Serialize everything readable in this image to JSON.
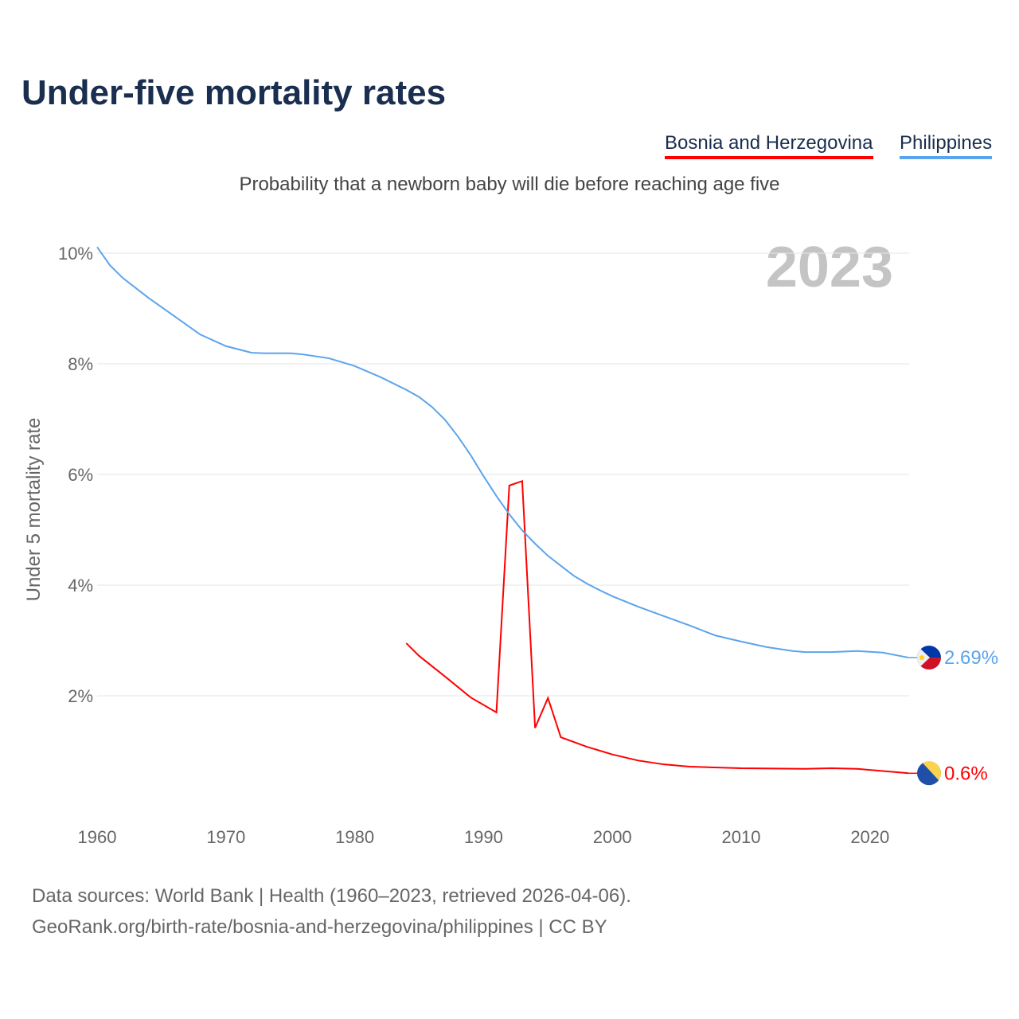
{
  "title": "Under-five mortality rates",
  "subtitle": "Probability that a newborn baby will die before reaching age five",
  "sources": [
    "Data sources: World Bank | Health (1960–2023, retrieved 2026-04-06).",
    "GeoRank.org/birth-rate/bosnia-and-herzegovina/philippines | CC BY"
  ],
  "chart_data": {
    "type": "line",
    "title": "Under-five mortality rates",
    "ylabel": "Under 5 mortality rate",
    "xlabel": "",
    "year_label": "2023",
    "xlim": [
      1960,
      2023
    ],
    "ylim": [
      0,
      10
    ],
    "xticks": [
      "1960",
      "1970",
      "1980",
      "1990",
      "2000",
      "2010",
      "2020"
    ],
    "yticks": [
      {
        "v": 2,
        "label": "2%"
      },
      {
        "v": 4,
        "label": "4%"
      },
      {
        "v": 6,
        "label": "6%"
      },
      {
        "v": 8,
        "label": "8%"
      },
      {
        "v": 10,
        "label": "10%"
      }
    ],
    "grid": true,
    "legend_position": "top-right",
    "series": [
      {
        "name": "Bosnia and Herzegovina",
        "color": "#ff0000",
        "end_label": "0.6%",
        "flag": "bosnia-flag",
        "x": [
          1984,
          1985,
          1987,
          1989,
          1991,
          1992,
          1993,
          1994,
          1995,
          1996,
          1998,
          2000,
          2002,
          2004,
          2006,
          2010,
          2015,
          2017,
          2019,
          2023
        ],
        "y": [
          2.95,
          2.72,
          2.35,
          1.97,
          1.7,
          5.8,
          5.88,
          1.42,
          1.96,
          1.25,
          1.08,
          0.94,
          0.83,
          0.76,
          0.72,
          0.69,
          0.68,
          0.69,
          0.68,
          0.6
        ]
      },
      {
        "name": "Philippines",
        "color": "#5ba4ec",
        "end_label": "2.69%",
        "flag": "philippines-flag",
        "x": [
          1960,
          1961,
          1962,
          1964,
          1966,
          1968,
          1970,
          1972,
          1973,
          1975,
          1976,
          1978,
          1980,
          1982,
          1984,
          1985,
          1986,
          1987,
          1988,
          1989,
          1990,
          1991,
          1992,
          1993,
          1994,
          1995,
          1996,
          1997,
          1998,
          1999,
          2000,
          2002,
          2004,
          2006,
          2008,
          2010,
          2012,
          2014,
          2015,
          2017,
          2019,
          2021,
          2023
        ],
        "y": [
          10.11,
          9.78,
          9.55,
          9.19,
          8.86,
          8.53,
          8.32,
          8.2,
          8.19,
          8.19,
          8.17,
          8.1,
          7.96,
          7.76,
          7.53,
          7.4,
          7.22,
          6.99,
          6.69,
          6.35,
          5.97,
          5.61,
          5.28,
          4.99,
          4.75,
          4.53,
          4.35,
          4.17,
          4.03,
          3.91,
          3.8,
          3.61,
          3.44,
          3.27,
          3.09,
          2.98,
          2.88,
          2.81,
          2.79,
          2.79,
          2.81,
          2.78,
          2.69
        ]
      }
    ]
  }
}
